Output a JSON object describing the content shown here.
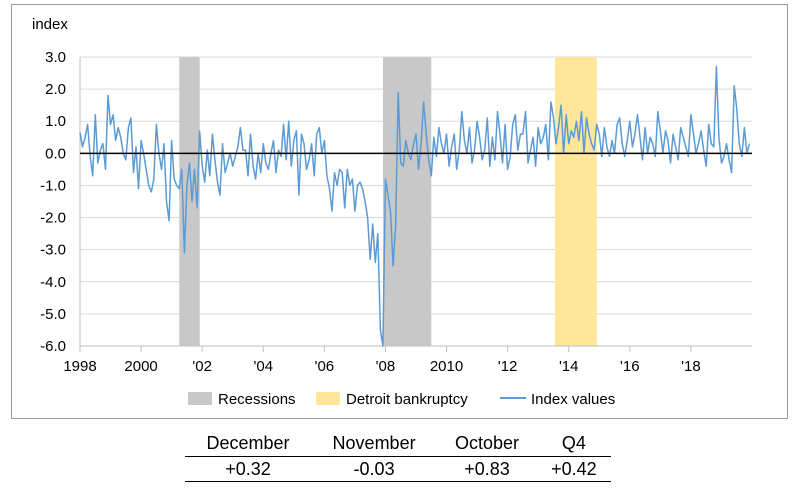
{
  "chart_data": {
    "type": "line",
    "ylabel": "index",
    "ylim": [
      -6.0,
      3.0
    ],
    "yticks": [
      "3.0",
      "2.0",
      "1.0",
      "0.0",
      "-1.0",
      "-2.0",
      "-3.0",
      "-4.0",
      "-5.0",
      "-6.0"
    ],
    "xlim": [
      1998.0,
      2020.0
    ],
    "xticks": [
      {
        "x": 1998,
        "label": "1998"
      },
      {
        "x": 2000,
        "label": "2000"
      },
      {
        "x": 2002,
        "label": "'02"
      },
      {
        "x": 2004,
        "label": "'04"
      },
      {
        "x": 2006,
        "label": "'06"
      },
      {
        "x": 2008,
        "label": "'08"
      },
      {
        "x": 2010,
        "label": "2010"
      },
      {
        "x": 2012,
        "label": "'12"
      },
      {
        "x": 2014,
        "label": "'14"
      },
      {
        "x": 2016,
        "label": "'16"
      },
      {
        "x": 2018,
        "label": "'18"
      }
    ],
    "grid": "horizontal",
    "shaded_periods": [
      {
        "name": "Recessions",
        "start": 2001.25,
        "end": 2001.92,
        "color": "#c8c8c8"
      },
      {
        "name": "Recessions",
        "start": 2007.92,
        "end": 2009.5,
        "color": "#c8c8c8"
      },
      {
        "name": "Detroit bankruptcy",
        "start": 2013.55,
        "end": 2014.92,
        "color": "#ffe699"
      }
    ],
    "series": [
      {
        "name": "Index values",
        "color": "#5b9bd5",
        "x_start": 1998.0,
        "x_step": 0.0833333,
        "values": [
          0.65,
          0.2,
          0.5,
          0.9,
          -0.1,
          -0.7,
          1.2,
          -0.3,
          0.1,
          0.3,
          -0.5,
          1.8,
          0.9,
          1.2,
          0.4,
          0.8,
          0.5,
          0.0,
          -0.2,
          0.8,
          1.1,
          -0.6,
          0.2,
          -1.1,
          0.4,
          0.0,
          -0.5,
          -1.0,
          -1.2,
          -0.8,
          0.9,
          0.0,
          -0.5,
          0.3,
          -1.5,
          -2.1,
          0.4,
          -0.8,
          -1.0,
          -1.1,
          -0.5,
          -3.1,
          -1.0,
          -0.3,
          -1.5,
          -0.5,
          -1.7,
          0.7,
          -0.4,
          -0.9,
          0.1,
          -0.7,
          0.6,
          -0.2,
          -0.9,
          -1.3,
          0.3,
          -0.6,
          -0.3,
          0.0,
          -0.4,
          -0.1,
          0.2,
          0.8,
          0.1,
          0.1,
          -0.7,
          0.6,
          -0.4,
          -0.8,
          0.0,
          -0.6,
          0.3,
          -0.3,
          -0.5,
          0.0,
          0.4,
          -0.6,
          0.1,
          -0.1,
          0.9,
          -0.2,
          1.0,
          -0.4,
          0.4,
          0.7,
          -1.3,
          0.6,
          0.3,
          -0.5,
          -0.2,
          0.3,
          -0.7,
          0.6,
          0.8,
          0.0,
          0.4,
          -0.7,
          -1.1,
          -1.8,
          -0.6,
          -1.0,
          -0.5,
          -0.6,
          -1.7,
          -0.5,
          -1.0,
          -0.8,
          -1.8,
          -1.0,
          -0.9,
          -1.1,
          -1.5,
          -2.0,
          -3.3,
          -2.2,
          -3.4,
          -2.5,
          -5.5,
          -6.0,
          -0.8,
          -1.3,
          -1.8,
          -3.5,
          -2.3,
          1.9,
          -0.3,
          -0.4,
          0.4,
          0.0,
          -0.2,
          0.3,
          0.6,
          -0.5,
          0.3,
          1.6,
          0.6,
          -0.2,
          -0.7,
          0.5,
          -0.1,
          0.8,
          0.3,
          0.0,
          0.6,
          -0.4,
          0.2,
          0.6,
          -0.5,
          0.1,
          1.3,
          0.4,
          0.0,
          0.8,
          -0.3,
          0.1,
          1.0,
          0.5,
          -0.2,
          0.1,
          1.1,
          -0.4,
          0.5,
          -0.2,
          1.3,
          0.6,
          -0.3,
          0.9,
          -0.5,
          -0.1,
          0.9,
          1.2,
          0.1,
          0.6,
          0.6,
          1.3,
          -0.3,
          0.1,
          0.5,
          -0.4,
          0.8,
          0.3,
          0.5,
          0.9,
          -0.2,
          1.6,
          1.1,
          0.3,
          0.8,
          1.5,
          0.0,
          1.2,
          0.3,
          0.7,
          0.5,
          1.0,
          0.4,
          1.3,
          0.0,
          1.1,
          0.6,
          0.3,
          0.1,
          0.9,
          0.6,
          -0.1,
          0.8,
          0.2,
          -0.1,
          0.4,
          0.0,
          0.9,
          1.1,
          0.3,
          -0.1,
          0.4,
          1.0,
          0.2,
          0.6,
          1.2,
          0.5,
          -0.2,
          0.8,
          0.0,
          0.5,
          0.3,
          -0.1,
          1.3,
          0.7,
          0.0,
          0.7,
          0.4,
          -0.3,
          0.6,
          0.2,
          -0.2,
          0.8,
          0.5,
          0.2,
          -0.1,
          1.2,
          0.6,
          0.0,
          0.3,
          0.7,
          0.1,
          -0.4,
          0.9,
          0.3,
          0.2,
          2.7,
          0.5,
          -0.3,
          -0.1,
          0.3,
          -0.2,
          -0.6,
          2.1,
          1.4,
          0.3,
          -0.1,
          0.8,
          0.0,
          0.3
        ]
      }
    ]
  },
  "legend": {
    "recessions": "Recessions",
    "bankruptcy": "Detroit bankruptcy",
    "index_values": "Index values"
  },
  "summary_table": {
    "headers": [
      "December",
      "November",
      "October",
      "Q4"
    ],
    "values": [
      "+0.32",
      "-0.03",
      "+0.83",
      "+0.42"
    ]
  }
}
